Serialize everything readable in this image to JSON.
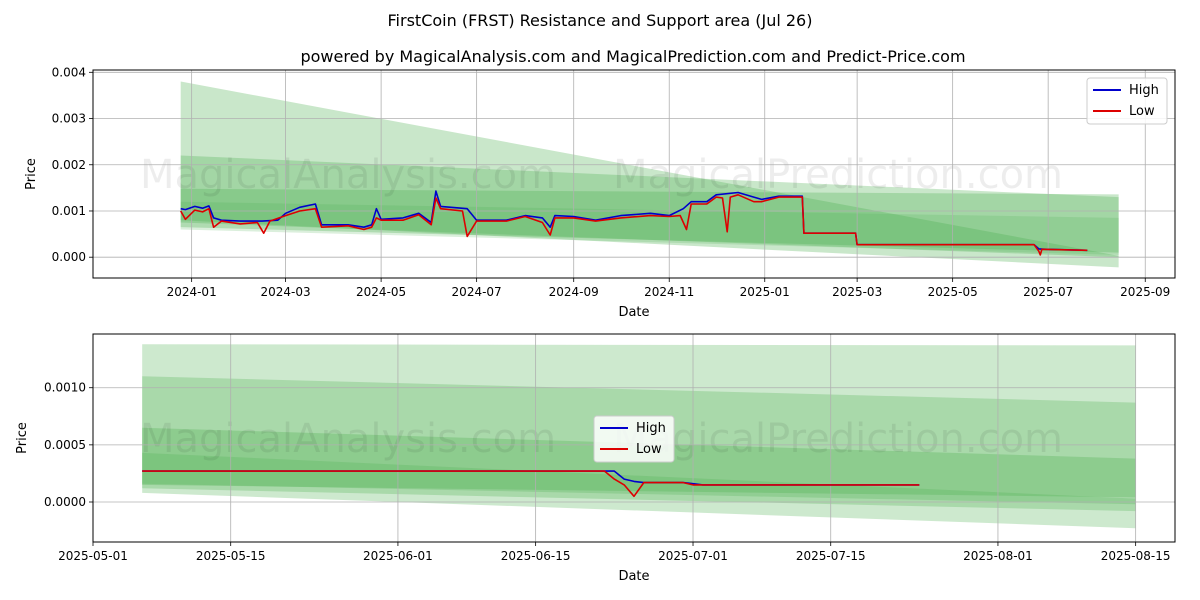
{
  "figure": {
    "title": "FirstCoin (FRST) Resistance and Support area (Jul 26)",
    "subtitle": "powered by MagicalAnalysis.com and MagicalPrediction.com and Predict-Price.com",
    "watermark_left": "MagicalAnalysis.com",
    "watermark_right": "MagicalPrediction.com",
    "colors": {
      "high": "#0000cc",
      "low": "#dd0000",
      "band": "#4caf50",
      "grid": "#b0b0b0"
    }
  },
  "chart_data": [
    {
      "type": "line",
      "xlabel": "Date",
      "ylabel": "Price",
      "ylim": [
        -0.00045,
        0.00405
      ],
      "x_ticks": [
        "2024-01",
        "2024-03",
        "2024-05",
        "2024-07",
        "2024-09",
        "2024-11",
        "2025-01",
        "2025-03",
        "2025-05",
        "2025-07",
        "2025-09"
      ],
      "y_ticks": [
        "0.000",
        "0.001",
        "0.002",
        "0.003",
        "0.004"
      ],
      "legend": {
        "position": "top-right",
        "entries": [
          "High",
          "Low"
        ]
      },
      "grid": true,
      "series": [
        {
          "name": "High",
          "points": [
            [
              "2023-12-25",
              0.00105
            ],
            [
              "2023-12-28",
              0.00103
            ],
            [
              "2024-01-03",
              0.0011
            ],
            [
              "2024-01-08",
              0.00106
            ],
            [
              "2024-01-12",
              0.00111
            ],
            [
              "2024-01-15",
              0.00085
            ],
            [
              "2024-01-20",
              0.0008
            ],
            [
              "2024-02-01",
              0.00078
            ],
            [
              "2024-02-15",
              0.00078
            ],
            [
              "2024-02-25",
              0.0008
            ],
            [
              "2024-03-01",
              0.00095
            ],
            [
              "2024-03-10",
              0.00108
            ],
            [
              "2024-03-20",
              0.00115
            ],
            [
              "2024-03-24",
              0.0007
            ],
            [
              "2024-04-10",
              0.0007
            ],
            [
              "2024-04-20",
              0.00065
            ],
            [
              "2024-04-25",
              0.0007
            ],
            [
              "2024-04-28",
              0.00105
            ],
            [
              "2024-05-01",
              0.00082
            ],
            [
              "2024-05-15",
              0.00085
            ],
            [
              "2024-05-25",
              0.00095
            ],
            [
              "2024-06-02",
              0.00075
            ],
            [
              "2024-06-05",
              0.00143
            ],
            [
              "2024-06-08",
              0.0011
            ],
            [
              "2024-06-25",
              0.00105
            ],
            [
              "2024-07-01",
              0.0008
            ],
            [
              "2024-07-20",
              0.0008
            ],
            [
              "2024-08-01",
              0.0009
            ],
            [
              "2024-08-12",
              0.00085
            ],
            [
              "2024-08-17",
              0.00065
            ],
            [
              "2024-08-20",
              0.0009
            ],
            [
              "2024-09-01",
              0.00088
            ],
            [
              "2024-09-15",
              0.0008
            ],
            [
              "2024-10-01",
              0.0009
            ],
            [
              "2024-10-20",
              0.00095
            ],
            [
              "2024-11-01",
              0.0009
            ],
            [
              "2024-11-10",
              0.00105
            ],
            [
              "2024-11-15",
              0.0012
            ],
            [
              "2024-11-25",
              0.0012
            ],
            [
              "2024-12-01",
              0.00135
            ],
            [
              "2024-12-15",
              0.0014
            ],
            [
              "2024-12-25",
              0.0013
            ],
            [
              "2024-12-30",
              0.00125
            ],
            [
              "2025-01-10",
              0.00132
            ],
            [
              "2025-01-25",
              0.00132
            ],
            [
              "2025-01-26",
              0.00052
            ],
            [
              "2025-02-28",
              0.00052
            ],
            [
              "2025-03-01",
              0.00027
            ],
            [
              "2025-06-22",
              0.00027
            ],
            [
              "2025-06-25",
              0.00018
            ],
            [
              "2025-06-30",
              0.00017
            ],
            [
              "2025-07-26",
              0.00015
            ]
          ]
        },
        {
          "name": "Low",
          "points": [
            [
              "2023-12-25",
              0.001
            ],
            [
              "2023-12-28",
              0.00082
            ],
            [
              "2024-01-03",
              0.00102
            ],
            [
              "2024-01-08",
              0.00098
            ],
            [
              "2024-01-12",
              0.00105
            ],
            [
              "2024-01-15",
              0.00065
            ],
            [
              "2024-01-20",
              0.00078
            ],
            [
              "2024-02-01",
              0.00072
            ],
            [
              "2024-02-12",
              0.00075
            ],
            [
              "2024-02-16",
              0.00052
            ],
            [
              "2024-02-20",
              0.00078
            ],
            [
              "2024-03-01",
              0.0009
            ],
            [
              "2024-03-10",
              0.001
            ],
            [
              "2024-03-20",
              0.00105
            ],
            [
              "2024-03-24",
              0.00065
            ],
            [
              "2024-04-10",
              0.00068
            ],
            [
              "2024-04-20",
              0.0006
            ],
            [
              "2024-04-25",
              0.00065
            ],
            [
              "2024-04-28",
              0.00085
            ],
            [
              "2024-05-01",
              0.0008
            ],
            [
              "2024-05-15",
              0.0008
            ],
            [
              "2024-05-25",
              0.00092
            ],
            [
              "2024-06-02",
              0.0007
            ],
            [
              "2024-06-05",
              0.00128
            ],
            [
              "2024-06-08",
              0.00105
            ],
            [
              "2024-06-22",
              0.001
            ],
            [
              "2024-06-25",
              0.00045
            ],
            [
              "2024-07-01",
              0.00078
            ],
            [
              "2024-07-20",
              0.00078
            ],
            [
              "2024-08-01",
              0.00088
            ],
            [
              "2024-08-12",
              0.00075
            ],
            [
              "2024-08-17",
              0.00048
            ],
            [
              "2024-08-20",
              0.00085
            ],
            [
              "2024-09-01",
              0.00085
            ],
            [
              "2024-09-15",
              0.00078
            ],
            [
              "2024-10-01",
              0.00085
            ],
            [
              "2024-10-20",
              0.0009
            ],
            [
              "2024-11-01",
              0.00088
            ],
            [
              "2024-11-08",
              0.0009
            ],
            [
              "2024-11-12",
              0.0006
            ],
            [
              "2024-11-15",
              0.00115
            ],
            [
              "2024-11-25",
              0.00115
            ],
            [
              "2024-12-01",
              0.0013
            ],
            [
              "2024-12-05",
              0.00128
            ],
            [
              "2024-12-08",
              0.00055
            ],
            [
              "2024-12-10",
              0.0013
            ],
            [
              "2024-12-15",
              0.00135
            ],
            [
              "2024-12-25",
              0.0012
            ],
            [
              "2024-12-30",
              0.0012
            ],
            [
              "2025-01-10",
              0.0013
            ],
            [
              "2025-01-25",
              0.0013
            ],
            [
              "2025-01-26",
              0.00052
            ],
            [
              "2025-02-28",
              0.00052
            ],
            [
              "2025-03-01",
              0.00027
            ],
            [
              "2025-06-22",
              0.00027
            ],
            [
              "2025-06-25",
              0.00013
            ],
            [
              "2025-06-26",
              5e-05
            ],
            [
              "2025-06-27",
              0.00017
            ],
            [
              "2025-07-26",
              0.00015
            ]
          ]
        }
      ],
      "bands": [
        {
          "x": [
            "2023-12-25",
            "2025-08-15"
          ],
          "upper": [
            0.0038,
            3e-05
          ],
          "lower": [
            0.0008,
            -0.00022
          ],
          "opacity": 0.3
        },
        {
          "x": [
            "2023-12-25",
            "2025-08-15"
          ],
          "upper": [
            0.0022,
            0.0013
          ],
          "lower": [
            0.00075,
            0.0
          ],
          "opacity": 0.3
        },
        {
          "x": [
            "2023-12-25",
            "2025-08-15"
          ],
          "upper": [
            0.00148,
            0.00136
          ],
          "lower": [
            0.00065,
            0.0001
          ],
          "opacity": 0.3
        },
        {
          "x": [
            "2023-12-25",
            "2025-08-15"
          ],
          "upper": [
            0.0012,
            0.00085
          ],
          "lower": [
            0.0006,
            5e-05
          ],
          "opacity": 0.2
        }
      ]
    },
    {
      "type": "line",
      "xlabel": "Date",
      "ylabel": "Price",
      "ylim": [
        -0.00035,
        0.00147
      ],
      "x_ticks": [
        "2025-05-01",
        "2025-05-15",
        "2025-06-01",
        "2025-06-15",
        "2025-07-01",
        "2025-07-15",
        "2025-08-01",
        "2025-08-15"
      ],
      "y_ticks": [
        "0.0000",
        "0.0005",
        "0.0010"
      ],
      "legend": {
        "position": "center",
        "entries": [
          "High",
          "Low"
        ]
      },
      "grid": true,
      "series": [
        {
          "name": "High",
          "points": [
            [
              "2025-05-06",
              0.00027
            ],
            [
              "2025-06-22",
              0.00027
            ],
            [
              "2025-06-23",
              0.00027
            ],
            [
              "2025-06-24",
              0.0002
            ],
            [
              "2025-06-25",
              0.00018
            ],
            [
              "2025-06-26",
              0.00017
            ],
            [
              "2025-06-30",
              0.00017
            ],
            [
              "2025-07-01",
              0.00016
            ],
            [
              "2025-07-02",
              0.00015
            ],
            [
              "2025-07-24",
              0.00015
            ]
          ]
        },
        {
          "name": "Low",
          "points": [
            [
              "2025-05-06",
              0.00027
            ],
            [
              "2025-06-22",
              0.00027
            ],
            [
              "2025-06-23",
              0.0002
            ],
            [
              "2025-06-24",
              0.00015
            ],
            [
              "2025-06-25",
              5e-05
            ],
            [
              "2025-06-26",
              0.00017
            ],
            [
              "2025-06-30",
              0.00017
            ],
            [
              "2025-07-01",
              0.00015
            ],
            [
              "2025-07-24",
              0.00015
            ]
          ]
        }
      ],
      "bands": [
        {
          "x": [
            "2025-05-06",
            "2025-08-15"
          ],
          "upper": [
            0.00138,
            0.00137
          ],
          "lower": [
            8e-05,
            -0.00023
          ],
          "opacity": 0.28
        },
        {
          "x": [
            "2025-05-06",
            "2025-08-15"
          ],
          "upper": [
            0.0011,
            0.00087
          ],
          "lower": [
            0.00012,
            -8e-05
          ],
          "opacity": 0.28
        },
        {
          "x": [
            "2025-05-06",
            "2025-08-15"
          ],
          "upper": [
            0.00065,
            0.00038
          ],
          "lower": [
            0.00015,
            4e-05
          ],
          "opacity": 0.3
        },
        {
          "x": [
            "2025-05-06",
            "2025-08-15"
          ],
          "upper": [
            0.00043,
            3e-05
          ],
          "lower": [
            0.00016,
            -2e-05
          ],
          "opacity": 0.25
        }
      ]
    }
  ]
}
